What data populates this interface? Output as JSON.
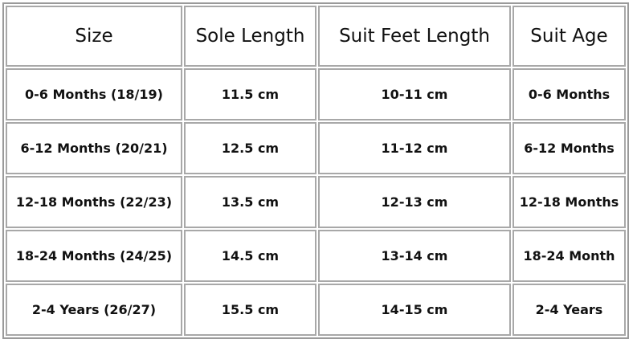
{
  "headers": [
    "Size",
    "Sole Length",
    "Suit Feet Length",
    "Suit Age"
  ],
  "rows": [
    [
      "0-6 Months (18/19)",
      "11.5 cm",
      "10-11 cm",
      "0-6 Months"
    ],
    [
      "6-12 Months (20/21)",
      "12.5 cm",
      "11-12 cm",
      "6-12 Months"
    ],
    [
      "12-18 Months (22/23)",
      "13.5 cm",
      "12-13 cm",
      "12-18 Months"
    ],
    [
      "18-24 Months (24/25)",
      "14.5 cm",
      "13-14 cm",
      "18-24 Month"
    ],
    [
      "2-4 Years (26/27)",
      "15.5 cm",
      "14-15 cm",
      "2-4 Years"
    ]
  ]
}
